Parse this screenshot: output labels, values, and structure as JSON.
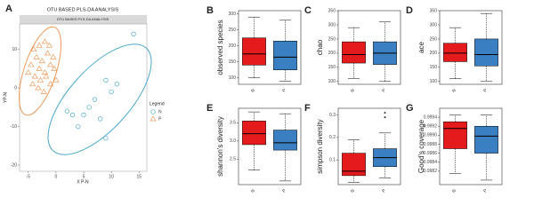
{
  "chart_data": [
    {
      "type": "scatter",
      "panel": "A",
      "title": "OTU BASED PLS-DA ANALYSIS",
      "subtitle": "OTU BASED PLS-DA ANALYSIS",
      "x_label": "X P-N",
      "y_label": "YP-N",
      "legend_title": "Legend",
      "xlim": [
        -5.6,
        15.6
      ],
      "ylim": [
        -21.6,
        16.6
      ],
      "xticks": [
        -5,
        0,
        5,
        10,
        15
      ],
      "yticks": [
        10,
        0,
        -10,
        -20
      ],
      "series": [
        {
          "name": "N",
          "color": "#4aa8cc",
          "marker": "circle",
          "x": [
            14,
            9,
            11,
            10,
            7,
            5,
            3,
            4,
            8,
            9,
            2,
            6
          ],
          "y": [
            14,
            2,
            1,
            -1,
            -3,
            -7,
            -7,
            -10,
            -8,
            -13,
            -6,
            -5
          ]
        },
        {
          "name": "P",
          "color": "#ee9b5c",
          "marker": "triangle",
          "x": [
            -4,
            -3,
            -2,
            -3.5,
            -2.5,
            -1.5,
            -4.5,
            -3,
            -2,
            -1,
            -0.5,
            -3.8,
            -2.8,
            -1.8,
            -4.2,
            -3.2,
            -1,
            -2.2,
            0,
            -5,
            -1.2,
            -0.3
          ],
          "y": [
            10,
            11,
            12,
            8,
            7,
            9,
            6,
            5,
            4,
            6,
            8,
            3,
            2,
            3,
            1,
            0,
            1,
            -1,
            2,
            4,
            11,
            5
          ]
        }
      ]
    },
    {
      "type": "box",
      "panel": "B",
      "y_label": "observed species",
      "ylim": [
        80,
        310
      ],
      "yticks": [
        100,
        150,
        200,
        250,
        300
      ],
      "boxes": [
        {
          "name": "N",
          "color": "#e41a1c",
          "min": 100,
          "q1": 140,
          "median": 175,
          "q3": 225,
          "max": 290,
          "outliers": []
        },
        {
          "name": "P",
          "color": "#3a7fc1",
          "min": 90,
          "q1": 125,
          "median": 165,
          "q3": 215,
          "max": 280,
          "outliers": []
        }
      ]
    },
    {
      "type": "box",
      "panel": "C",
      "y_label": "chao",
      "ylim": [
        90,
        350
      ],
      "yticks": [
        100,
        150,
        200,
        250,
        300,
        350
      ],
      "boxes": [
        {
          "name": "N",
          "color": "#e41a1c",
          "min": 110,
          "q1": 165,
          "median": 195,
          "q3": 240,
          "max": 290,
          "outliers": []
        },
        {
          "name": "P",
          "color": "#3a7fc1",
          "min": 100,
          "q1": 160,
          "median": 200,
          "q3": 240,
          "max": 310,
          "outliers": []
        }
      ]
    },
    {
      "type": "box",
      "panel": "D",
      "y_label": "ace",
      "ylim": [
        90,
        350
      ],
      "yticks": [
        100,
        150,
        200,
        250,
        300,
        350
      ],
      "boxes": [
        {
          "name": "N",
          "color": "#e41a1c",
          "min": 110,
          "q1": 170,
          "median": 200,
          "q3": 235,
          "max": 290,
          "outliers": []
        },
        {
          "name": "P",
          "color": "#3a7fc1",
          "min": 100,
          "q1": 155,
          "median": 195,
          "q3": 250,
          "max": 340,
          "outliers": []
        }
      ]
    },
    {
      "type": "box",
      "panel": "E",
      "y_label": "shannon's diversity",
      "ylim": [
        1.8,
        3.9
      ],
      "yticks": [
        2.5,
        {
          "value": 3,
          "label": "3.0"
        },
        3.5
      ],
      "boxes": [
        {
          "name": "N",
          "color": "#e41a1c",
          "min": 2.2,
          "q1": 2.9,
          "median": 3.2,
          "q3": 3.55,
          "max": 3.8,
          "outliers": []
        },
        {
          "name": "P",
          "color": "#3a7fc1",
          "min": 1.9,
          "q1": 2.75,
          "median": 2.95,
          "q3": 3.3,
          "max": 3.75,
          "outliers": []
        }
      ]
    },
    {
      "type": "box",
      "panel": "F",
      "y_label": "simpson diversity",
      "ylim": [
        -0.01,
        0.33
      ],
      "yticks": [
        0.1,
        0.2,
        0.3
      ],
      "boxes": [
        {
          "name": "N",
          "color": "#e41a1c",
          "min": 0,
          "q1": 0.03,
          "median": 0.05,
          "q3": 0.13,
          "max": 0.19,
          "outliers": []
        },
        {
          "name": "P",
          "color": "#3a7fc1",
          "min": 0.02,
          "q1": 0.07,
          "median": 0.11,
          "q3": 0.15,
          "max": 0.22,
          "outliers": [
            0.29,
            0.31
          ]
        }
      ]
    },
    {
      "type": "box",
      "panel": "G",
      "y_label": "Good's coverage",
      "ylim": [
        0.9979,
        0.9996
      ],
      "yticks": [
        {
          "value": 0.9982,
          "label": "0.9982"
        },
        {
          "value": 0.9984,
          "label": "0.9984"
        },
        {
          "value": 0.9986,
          "label": "0.9986"
        },
        {
          "value": 0.9988,
          "label": "0.9988"
        },
        {
          "value": 0.999,
          "label": "0.9990"
        },
        {
          "value": 0.9992,
          "label": "0.9992"
        },
        {
          "value": 0.9994,
          "label": "0.9994"
        }
      ],
      "boxes": [
        {
          "name": "N",
          "color": "#e41a1c",
          "min": 0.99815,
          "q1": 0.9987,
          "median": 0.99915,
          "q3": 0.9993,
          "max": 0.99945,
          "outliers": []
        },
        {
          "name": "P",
          "color": "#3a7fc1",
          "min": 0.998,
          "q1": 0.9986,
          "median": 0.99898,
          "q3": 0.9992,
          "max": 0.99945,
          "outliers": []
        }
      ]
    }
  ]
}
